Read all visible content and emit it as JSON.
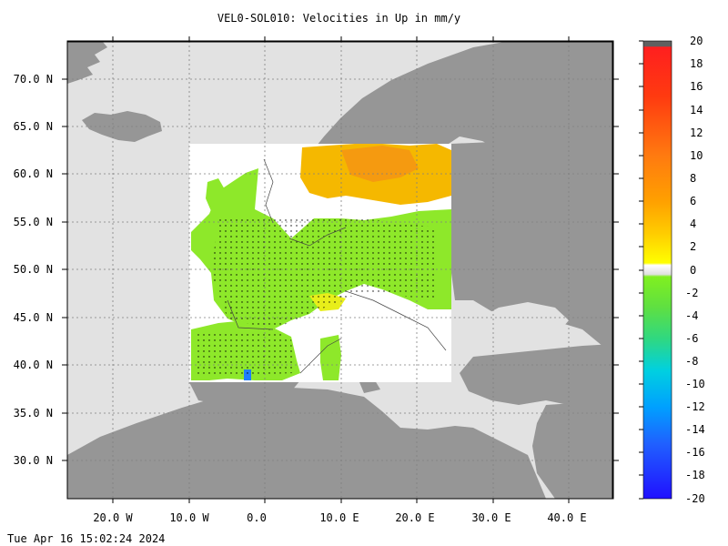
{
  "title": "VEL0-SOL010: Velocities in Up in mm/y",
  "timestamp": "Tue Apr 16 15:02:24 2024",
  "map": {
    "lat_labels": [
      "70.0 N",
      "65.0 N",
      "60.0 N",
      "55.0 N",
      "50.0 N",
      "45.0 N",
      "40.0 N",
      "35.0 N",
      "30.0 N"
    ],
    "lon_labels": [
      "20.0 W",
      "10.0 W",
      "0.0",
      "10.0 E",
      "20.0 E",
      "30.0 E",
      "40.0 E"
    ],
    "lon_range": [
      -26,
      46
    ],
    "lat_range": [
      26,
      74
    ],
    "data_region": {
      "lon": [
        -10,
        24.5
      ],
      "lat": [
        38,
        63
      ]
    },
    "colors": {
      "sea": "#e2e2e2",
      "land": "#969696",
      "land_dark": "#7f7f7f",
      "data_bg": "#ffffff",
      "grid": "#808080"
    }
  },
  "colorbar": {
    "labels": [
      "20",
      "18",
      "16",
      "14",
      "12",
      "10",
      "8",
      "6",
      "4",
      "2",
      "0",
      "-2",
      "-4",
      "-6",
      "-8",
      "-10",
      "-12",
      "-14",
      "-16",
      "-18",
      "-20"
    ],
    "range": [
      -20,
      20
    ]
  }
}
